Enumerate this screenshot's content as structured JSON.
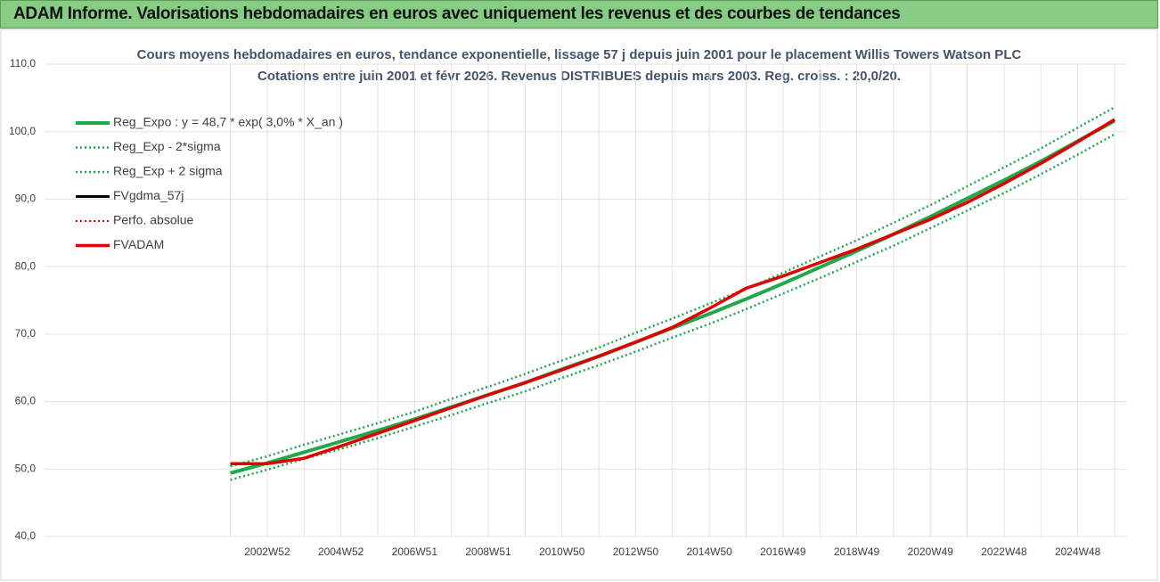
{
  "page_title": "ADAM Informe. Valorisations hebdomadaires en euros avec uniquement les revenus et des courbes de tendances",
  "chart_data": {
    "type": "line",
    "title": [
      "Cours moyens hebdomadaires en euros, tendance exponentielle, lissage 57 j depuis juin 2001 pour le placement  Willis Towers Watson PLC",
      "Cotations entre juin 2001 et févr 2026. Revenus DISTRIBUES depuis mars 2003.  Reg. croiss. : 20,0/20."
    ],
    "categories": [
      null,
      "2002W52",
      null,
      "2004W52",
      null,
      "2006W51",
      null,
      "2008W51",
      null,
      "2010W50",
      null,
      "2012W50",
      null,
      "2014W50",
      null,
      "2016W49",
      null,
      "2018W49",
      null,
      "2020W49",
      null,
      "2022W48",
      null,
      "2024W48",
      null
    ],
    "ylim": [
      40,
      110
    ],
    "yticks": [
      {
        "value": 40,
        "label": "40,0"
      },
      {
        "value": 50,
        "label": "50,0"
      },
      {
        "value": 60,
        "label": "60,0"
      },
      {
        "value": 70,
        "label": "70,0"
      },
      {
        "value": 80,
        "label": "80,0"
      },
      {
        "value": 90,
        "label": "90,0"
      },
      {
        "value": 100,
        "label": "100,0"
      },
      {
        "value": 110,
        "label": "110,0"
      }
    ],
    "grid": true,
    "legend": "upper left",
    "series": [
      {
        "name": "Reg_Expo : y = 48,7 * exp( 3,0% *  X_an )",
        "color": "#22a84c",
        "dash": "solid",
        "width": 4,
        "values": [
          49.4,
          50.9,
          52.5,
          54.1,
          55.7,
          57.4,
          59.2,
          61.0,
          62.8,
          64.8,
          66.7,
          68.8,
          70.9,
          73.0,
          75.2,
          77.5,
          79.9,
          82.3,
          84.8,
          87.4,
          90.1,
          92.8,
          95.6,
          98.6,
          101.6
        ]
      },
      {
        "name": "Reg_Exp - 2*sigma",
        "color": "#22a84c",
        "dash": "dotted",
        "width": 2.5,
        "values": [
          48.4,
          49.9,
          51.5,
          53.0,
          54.6,
          56.3,
          58.0,
          59.8,
          61.5,
          63.5,
          65.4,
          67.4,
          69.5,
          71.5,
          73.7,
          76.0,
          78.3,
          80.7,
          83.1,
          85.7,
          88.3,
          90.9,
          93.7,
          96.6,
          99.6
        ]
      },
      {
        "name": "Reg_Exp + 2 sigma",
        "color": "#22a84c",
        "dash": "dotted",
        "width": 2.5,
        "values": [
          50.4,
          51.9,
          53.6,
          55.2,
          56.8,
          58.5,
          60.4,
          62.2,
          64.1,
          66.1,
          68.0,
          70.2,
          72.3,
          74.5,
          76.7,
          79.1,
          81.5,
          83.9,
          86.5,
          89.1,
          91.9,
          94.7,
          97.5,
          100.6,
          103.6
        ]
      },
      {
        "name": "FVgdma_57j",
        "color": "#000000",
        "dash": "solid",
        "width": 3,
        "values": [
          50.8,
          50.8,
          51.6,
          53.4,
          55.3,
          57.2,
          59.1,
          61.0,
          62.8,
          64.7,
          66.7,
          68.8,
          71.0,
          73.8,
          76.8,
          78.6,
          80.6,
          82.6,
          84.8,
          87.0,
          89.5,
          92.3,
          95.3,
          98.5,
          101.8
        ]
      },
      {
        "name": "Perfo. absolue",
        "color": "#e00000",
        "dash": "dotted",
        "width": 2,
        "values": [
          50.8,
          50.8,
          51.6,
          53.4,
          55.3,
          57.2,
          59.1,
          61.0,
          62.8,
          64.7,
          66.7,
          68.8,
          71.0,
          73.8,
          76.8,
          78.6,
          80.6,
          82.6,
          84.8,
          87.0,
          89.5,
          92.3,
          95.3,
          98.5,
          101.8
        ]
      },
      {
        "name": "FVADAM",
        "color": "#e00000",
        "dash": "solid",
        "width": 3.5,
        "values": [
          50.8,
          50.8,
          51.6,
          53.4,
          55.3,
          57.2,
          59.1,
          61.0,
          62.8,
          64.7,
          66.7,
          68.8,
          71.0,
          73.8,
          76.8,
          78.6,
          80.6,
          82.6,
          84.8,
          87.0,
          89.5,
          92.3,
          95.3,
          98.5,
          101.8
        ]
      }
    ]
  }
}
